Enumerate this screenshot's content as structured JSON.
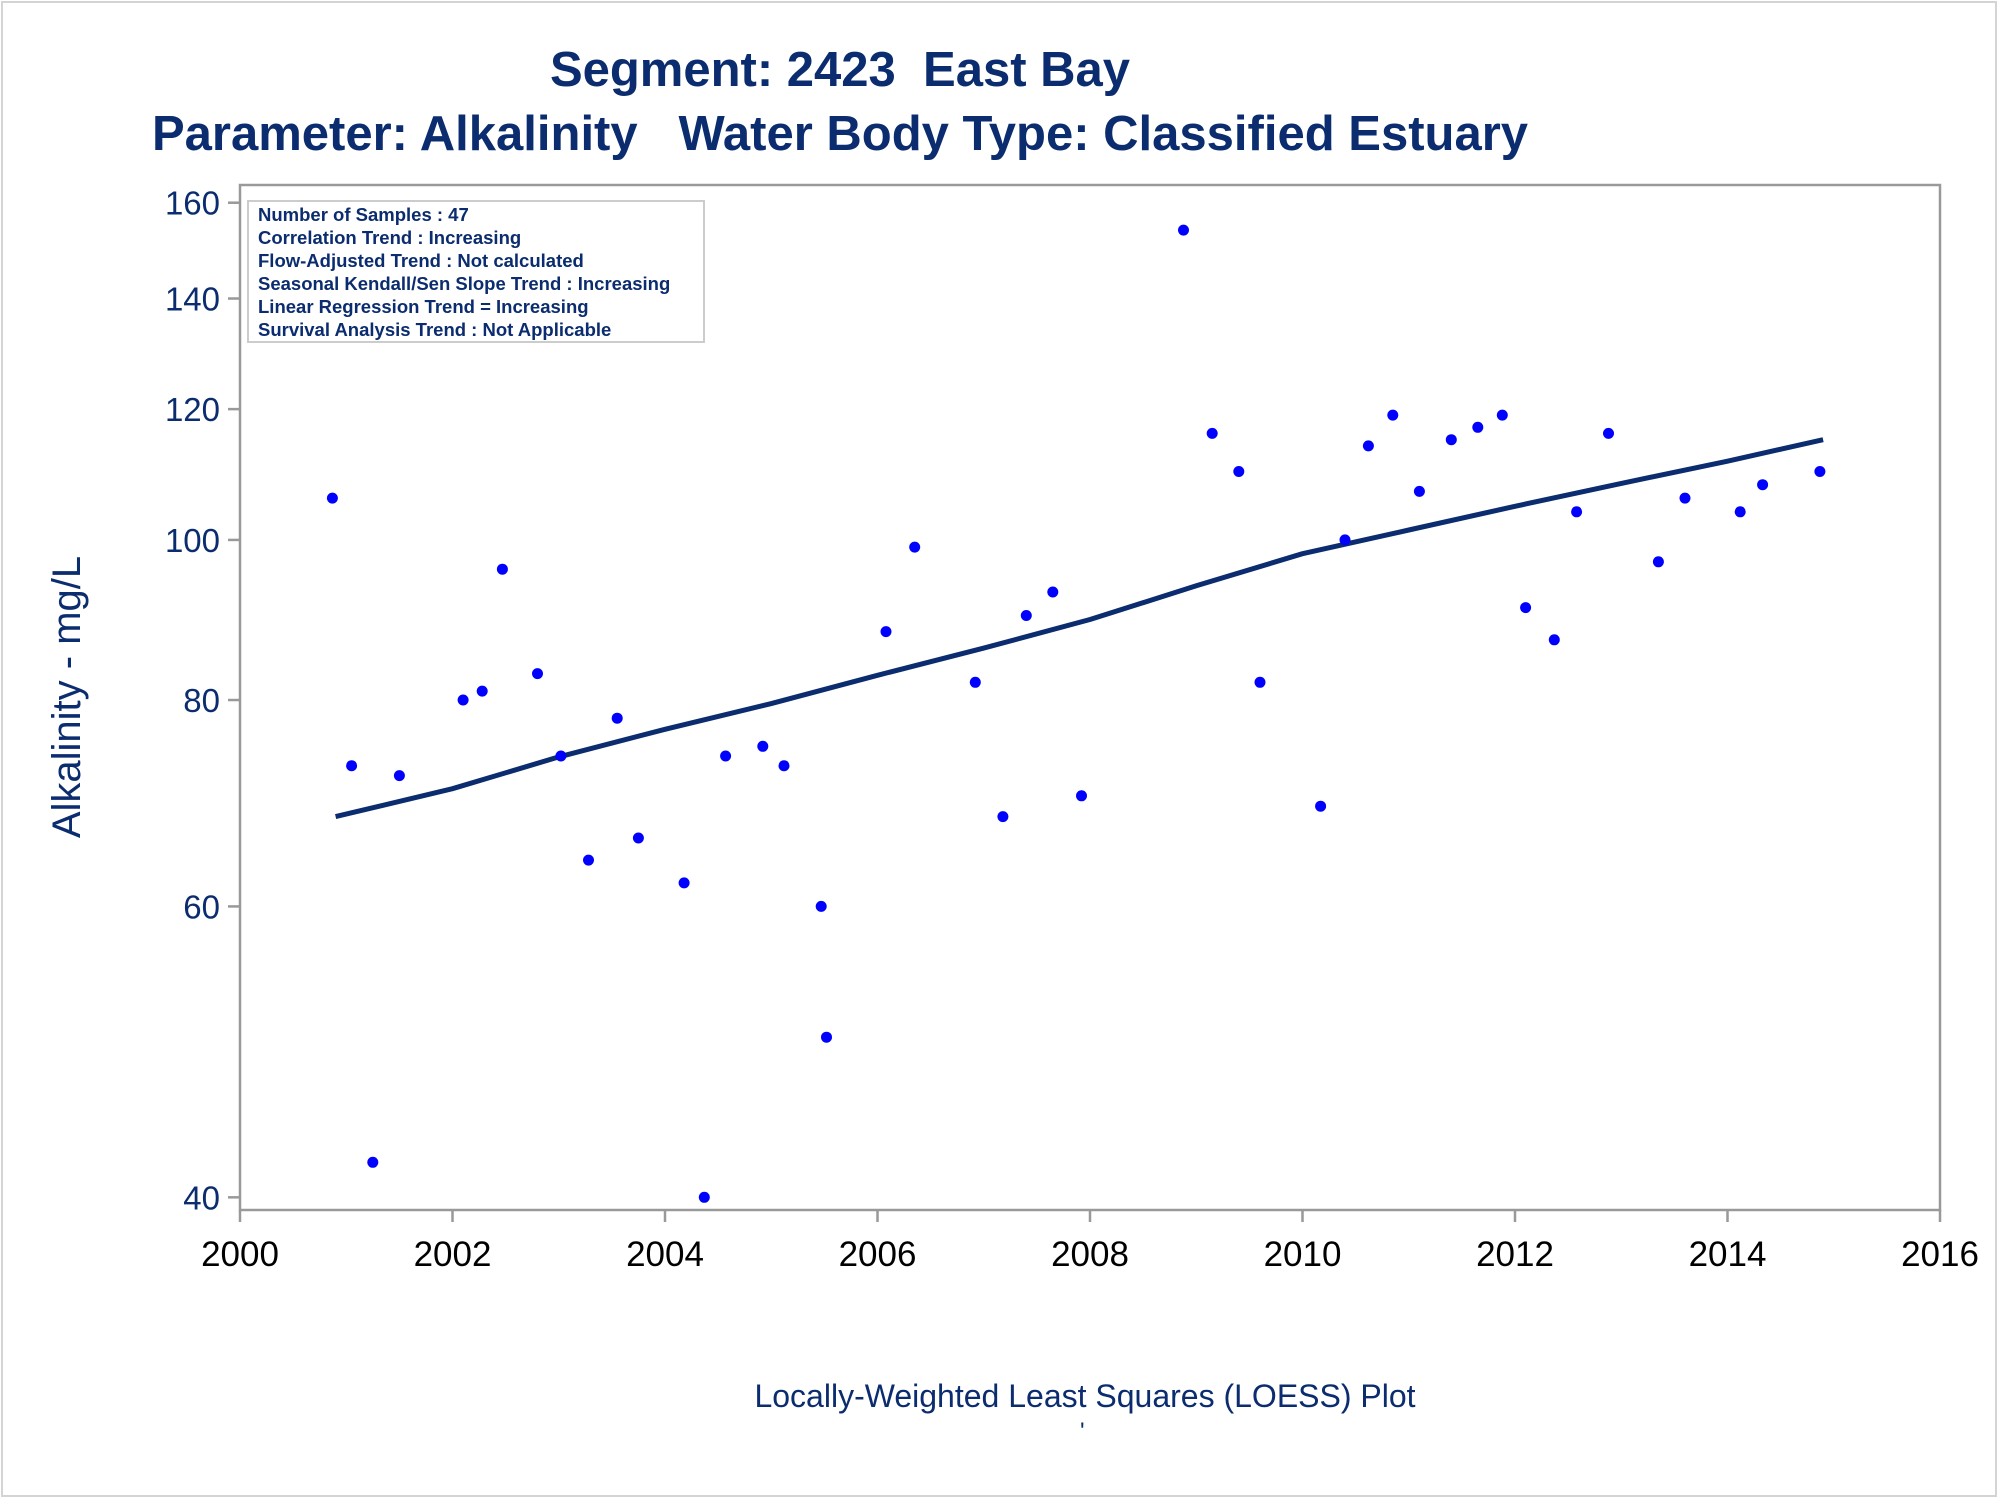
{
  "chart_data": {
    "type": "scatter",
    "title": "Segment: 2423  East Bay",
    "subtitle": "Parameter: Alkalinity   Water Body Type: Classified Estuary",
    "xlabel": "",
    "ylabel": "Alkalinity - mg/L",
    "footnote": "Locally-Weighted Least Squares (LOESS) Plot",
    "footnote_mark": "'",
    "x_scale": "linear",
    "y_scale": "log",
    "xlim": [
      2000,
      2016
    ],
    "ylim": [
      39.3,
      164
    ],
    "x_ticks": [
      2000,
      2002,
      2004,
      2006,
      2008,
      2010,
      2012,
      2014,
      2016
    ],
    "y_ticks": [
      40,
      60,
      80,
      100,
      120,
      140,
      160
    ],
    "grid": false,
    "annotation_box": [
      "Number of Samples : 47",
      "Correlation Trend : Increasing",
      "Flow-Adjusted Trend : Not calculated",
      "Seasonal Kendall/Sen Slope Trend : Increasing",
      "Linear Regression Trend = Increasing",
      "Survival Analysis Trend : Not Applicable"
    ],
    "annotation_placement": "top-left",
    "colors": {
      "points": "#0000ff",
      "trend_line": "#0b2c6e",
      "text": "#0b2c6e",
      "axis": "#999999"
    },
    "series": [
      {
        "kind": "points",
        "x": [
          2000.87,
          2001.05,
          2001.25,
          2001.5,
          2002.1,
          2002.28,
          2002.47,
          2002.8,
          2003.02,
          2003.28,
          2003.55,
          2003.75,
          2004.18,
          2004.37,
          2004.57,
          2004.92,
          2005.12,
          2005.47,
          2005.52,
          2006.08,
          2006.35,
          2006.92,
          2007.18,
          2007.4,
          2007.65,
          2007.92,
          2008.88,
          2009.15,
          2009.4,
          2009.6,
          2010.17,
          2010.4,
          2010.62,
          2010.85,
          2011.1,
          2011.4,
          2011.65,
          2011.88,
          2012.1,
          2012.37,
          2012.58,
          2012.88,
          2013.35,
          2013.6,
          2014.12,
          2014.33,
          2014.87
        ],
        "y": [
          106,
          73,
          42,
          72,
          80,
          81,
          96,
          83,
          74,
          64,
          78,
          66,
          62,
          40,
          74,
          75,
          73,
          60,
          50,
          88,
          99,
          82,
          68,
          90,
          93,
          70,
          154,
          116,
          110,
          82,
          69,
          100,
          114,
          119,
          107,
          115,
          117,
          119,
          91,
          87,
          104,
          116,
          97,
          106,
          104,
          108,
          110
        ]
      },
      {
        "kind": "loess_line",
        "x": [
          2000.9,
          2002.0,
          2003.0,
          2004.0,
          2005.0,
          2006.0,
          2007.0,
          2008.0,
          2009.0,
          2010.0,
          2011.0,
          2012.0,
          2013.0,
          2014.0,
          2014.9
        ],
        "y": [
          68,
          70.7,
          73.9,
          76.8,
          79.6,
          82.8,
          86.0,
          89.5,
          93.8,
          98.1,
          101.4,
          104.8,
          108.2,
          111.6,
          115
        ]
      }
    ]
  }
}
